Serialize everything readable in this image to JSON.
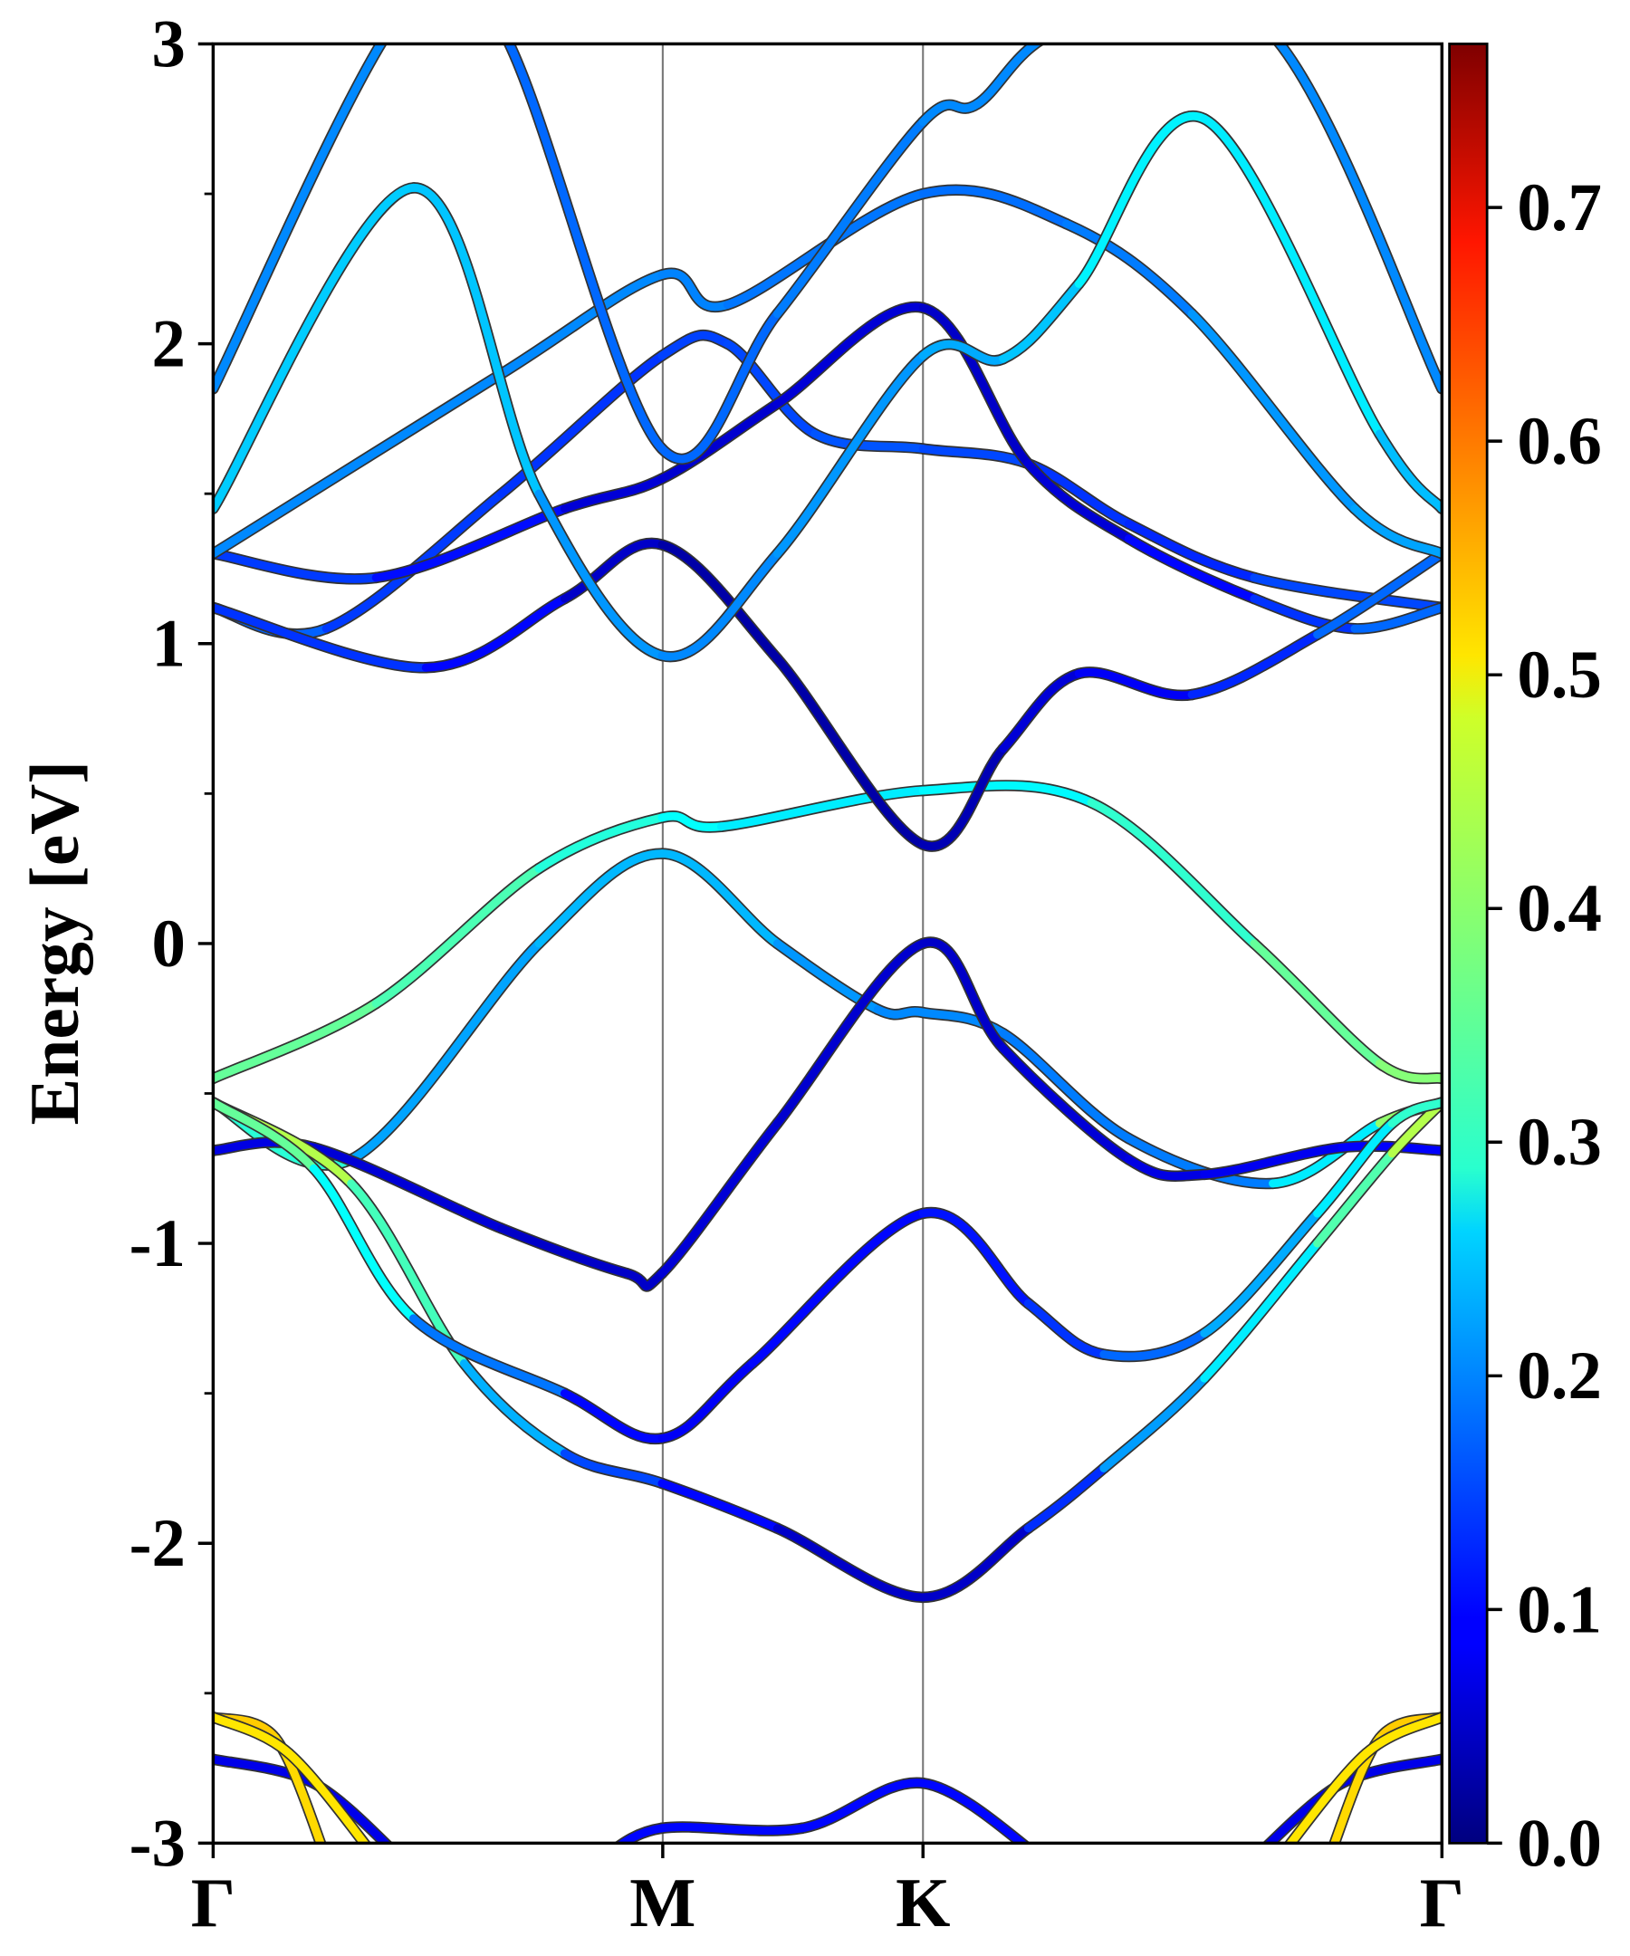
{
  "chart_data": {
    "type": "line",
    "title": "",
    "xlabel": "",
    "ylabel": "Energy [eV]",
    "ylim": [
      -3,
      3
    ],
    "yticks": [
      "-3",
      "-2",
      "-1",
      "0",
      "1",
      "2",
      "3"
    ],
    "ytick_values": [
      -3,
      -2,
      -1,
      0,
      1,
      2,
      3
    ],
    "kpoints": [
      {
        "label": "Γ",
        "k": 0
      },
      {
        "label": "M",
        "k": 0.577
      },
      {
        "label": "K",
        "k": 0.911
      },
      {
        "label": "Γ",
        "k": 1.577
      }
    ],
    "colorbar": {
      "colormap": "jet",
      "vmin": 0,
      "vmax": 0.77,
      "ticks": [
        "0.0",
        "0.1",
        "0.2",
        "0.3",
        "0.4",
        "0.5",
        "0.6",
        "0.7"
      ],
      "tick_values": [
        0,
        0.1,
        0.2,
        0.3,
        0.4,
        0.5,
        0.6,
        0.7
      ]
    },
    "bands_note": "points are [k, energy_eV, weight]",
    "bands": [
      [
        [
          0,
          -0.45,
          0.37
        ],
        [
          0.209,
          -0.2,
          0.36
        ],
        [
          0.418,
          0.25,
          0.33
        ],
        [
          0.576,
          0.42,
          0.3
        ],
        [
          0.652,
          0.39,
          0.28
        ],
        [
          0.911,
          0.51,
          0.27
        ],
        [
          1.127,
          0.47,
          0.3
        ],
        [
          1.336,
          0.0,
          0.35
        ],
        [
          1.497,
          -0.4,
          0.38
        ],
        [
          1.577,
          -0.45,
          0.4
        ]
      ],
      [
        [
          0,
          -0.53,
          0.42
        ],
        [
          0.177,
          -0.72,
          0.22
        ],
        [
          0.418,
          0.0,
          0.22
        ],
        [
          0.576,
          0.3,
          0.25
        ],
        [
          0.724,
          0.0,
          0.22
        ],
        [
          0.853,
          -0.22,
          0.2
        ],
        [
          0.911,
          -0.23,
          0.2
        ],
        [
          1.014,
          -0.3,
          0.2
        ],
        [
          1.175,
          -0.65,
          0.18
        ],
        [
          1.36,
          -0.8,
          0.2
        ],
        [
          1.497,
          -0.6,
          0.35
        ],
        [
          1.577,
          -0.53,
          0.45
        ]
      ],
      [
        [
          0,
          -0.69,
          0.08
        ],
        [
          0.129,
          -0.68,
          0.07
        ],
        [
          0.37,
          -0.95,
          0.06
        ],
        [
          0.531,
          -1.1,
          0.05
        ],
        [
          0.576,
          -1.1,
          0.06
        ],
        [
          0.724,
          -0.6,
          0.07
        ],
        [
          0.911,
          0.0,
          0.05
        ],
        [
          1.014,
          -0.35,
          0.06
        ],
        [
          1.175,
          -0.72,
          0.07
        ],
        [
          1.272,
          -0.77,
          0.08
        ],
        [
          1.449,
          -0.68,
          0.09
        ],
        [
          1.577,
          -0.69,
          0.1
        ]
      ],
      [
        [
          0,
          -0.53,
          0.45
        ],
        [
          0.177,
          -0.8,
          0.4
        ],
        [
          0.322,
          -1.4,
          0.28
        ],
        [
          0.451,
          -1.7,
          0.18
        ],
        [
          0.576,
          -1.8,
          0.12
        ],
        [
          0.724,
          -1.95,
          0.08
        ],
        [
          0.911,
          -2.18,
          0.03
        ],
        [
          1.046,
          -1.95,
          0.08
        ],
        [
          1.143,
          -1.75,
          0.18
        ],
        [
          1.272,
          -1.45,
          0.25
        ],
        [
          1.417,
          -1.0,
          0.3
        ],
        [
          1.513,
          -0.7,
          0.4
        ],
        [
          1.577,
          -0.53,
          0.45
        ]
      ],
      [
        [
          0,
          -0.53,
          0.4
        ],
        [
          0.129,
          -0.75,
          0.33
        ],
        [
          0.257,
          -1.25,
          0.25
        ],
        [
          0.451,
          -1.5,
          0.12
        ],
        [
          0.576,
          -1.65,
          0.08
        ],
        [
          0.692,
          -1.4,
          0.1
        ],
        [
          0.911,
          -0.9,
          0.1
        ],
        [
          1.046,
          -1.2,
          0.12
        ],
        [
          1.143,
          -1.37,
          0.15
        ],
        [
          1.272,
          -1.3,
          0.2
        ],
        [
          1.417,
          -0.9,
          0.25
        ],
        [
          1.513,
          -0.6,
          0.3
        ],
        [
          1.577,
          -0.53,
          0.35
        ]
      ],
      [
        [
          0,
          1.12,
          0.18
        ],
        [
          0.145,
          1.05,
          0.16
        ],
        [
          0.37,
          1.5,
          0.12
        ],
        [
          0.576,
          1.96,
          0.15
        ],
        [
          0.66,
          2.0,
          0.14
        ],
        [
          0.772,
          1.7,
          0.16
        ],
        [
          0.911,
          1.65,
          0.16
        ],
        [
          1.046,
          1.6,
          0.14
        ],
        [
          1.175,
          1.4,
          0.13
        ],
        [
          1.336,
          1.22,
          0.12
        ],
        [
          1.577,
          1.12,
          0.18
        ]
      ],
      [
        [
          0,
          1.3,
          0.15
        ],
        [
          0.209,
          1.22,
          0.13
        ],
        [
          0.451,
          1.45,
          0.08
        ],
        [
          0.576,
          1.55,
          0.05
        ],
        [
          0.724,
          1.8,
          0.07
        ],
        [
          0.911,
          2.12,
          0.06
        ],
        [
          1.046,
          1.6,
          0.05
        ],
        [
          1.175,
          1.35,
          0.08
        ],
        [
          1.336,
          1.15,
          0.12
        ],
        [
          1.465,
          1.05,
          0.15
        ],
        [
          1.577,
          1.12,
          0.2
        ]
      ],
      [
        [
          0,
          1.12,
          0.15
        ],
        [
          0.273,
          0.92,
          0.12
        ],
        [
          0.451,
          1.15,
          0.08
        ],
        [
          0.576,
          1.33,
          0.03
        ],
        [
          0.724,
          0.95,
          0.03
        ],
        [
          0.911,
          0.33,
          0.03
        ],
        [
          1.014,
          0.65,
          0.05
        ],
        [
          1.111,
          0.9,
          0.08
        ],
        [
          1.256,
          0.83,
          0.1
        ],
        [
          1.417,
          1.03,
          0.15
        ],
        [
          1.577,
          1.3,
          0.2
        ]
      ],
      [
        [
          0,
          1.3,
          0.2
        ],
        [
          0.37,
          1.9,
          0.2
        ],
        [
          0.576,
          2.23,
          0.2
        ],
        [
          0.66,
          2.13,
          0.19
        ],
        [
          0.911,
          2.5,
          0.18
        ],
        [
          1.095,
          2.4,
          0.18
        ],
        [
          1.256,
          2.1,
          0.2
        ],
        [
          1.465,
          1.45,
          0.22
        ],
        [
          1.577,
          1.3,
          0.22
        ]
      ],
      [
        [
          0,
          1.45,
          0.23
        ],
        [
          0.257,
          2.52,
          0.27
        ],
        [
          0.418,
          1.5,
          0.22
        ],
        [
          0.576,
          0.96,
          0.2
        ],
        [
          0.724,
          1.3,
          0.2
        ],
        [
          0.911,
          1.96,
          0.22
        ],
        [
          1.014,
          1.95,
          0.23
        ],
        [
          1.111,
          2.2,
          0.26
        ],
        [
          1.272,
          2.75,
          0.3
        ],
        [
          1.497,
          1.7,
          0.25
        ],
        [
          1.577,
          1.45,
          0.23
        ]
      ],
      [
        [
          0,
          1.85,
          0.2
        ],
        [
          0.241,
          3.1,
          0.2
        ],
        [
          0.37,
          3.05,
          0.18
        ],
        [
          0.576,
          1.65,
          0.17
        ],
        [
          0.724,
          2.1,
          0.18
        ],
        [
          0.911,
          2.74,
          0.2
        ],
        [
          0.981,
          2.8,
          0.2
        ],
        [
          1.095,
          3.05,
          0.2
        ],
        [
          1.352,
          3.05,
          0.2
        ],
        [
          1.577,
          1.85,
          0.2
        ]
      ],
      [
        [
          0,
          -2.72,
          0.08
        ],
        [
          0.129,
          -2.8,
          0.08
        ],
        [
          0.241,
          -3.05,
          0.08
        ]
      ],
      [
        [
          0.499,
          -3.05,
          0.1
        ],
        [
          0.576,
          -2.95,
          0.1
        ],
        [
          0.756,
          -2.95,
          0.1
        ],
        [
          0.911,
          -2.8,
          0.1
        ],
        [
          1.063,
          -3.05,
          0.1
        ]
      ],
      [
        [
          1.336,
          -3.05,
          0.08
        ],
        [
          1.449,
          -2.8,
          0.08
        ],
        [
          1.577,
          -2.72,
          0.08
        ]
      ],
      [
        [
          0,
          -2.58,
          0.52
        ],
        [
          0.08,
          -2.65,
          0.52
        ],
        [
          0.145,
          -3.05,
          0.5
        ]
      ],
      [
        [
          0,
          -2.58,
          0.5
        ],
        [
          0.097,
          -2.7,
          0.5
        ],
        [
          0.209,
          -3.05,
          0.5
        ]
      ],
      [
        [
          1.577,
          -2.58,
          0.52
        ],
        [
          1.497,
          -2.65,
          0.52
        ],
        [
          1.432,
          -3.05,
          0.5
        ]
      ],
      [
        [
          1.577,
          -2.58,
          0.5
        ],
        [
          1.48,
          -2.7,
          0.5
        ],
        [
          1.368,
          -3.05,
          0.5
        ]
      ]
    ]
  }
}
